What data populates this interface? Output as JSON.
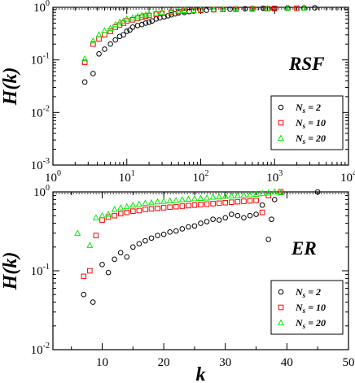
{
  "chart_data": [
    {
      "type": "scatter",
      "panel_label": "RSF",
      "xscale": "log",
      "yscale": "log",
      "xlim": [
        1,
        10000
      ],
      "ylim": [
        0.001,
        1
      ],
      "ylabel": "H(k)",
      "xlabel": "",
      "xtick_labels": [
        {
          "base": "10",
          "exp": "0"
        },
        {
          "base": "10",
          "exp": "1"
        },
        {
          "base": "10",
          "exp": "2"
        },
        {
          "base": "10",
          "exp": "3"
        },
        {
          "base": "10",
          "exp": "4"
        }
      ],
      "ytick_labels": [
        {
          "base": "10",
          "exp": "-3"
        },
        {
          "base": "10",
          "exp": "-2"
        },
        {
          "base": "10",
          "exp": "-1"
        },
        {
          "base": "10",
          "exp": "0"
        }
      ],
      "reference_line": 1,
      "legend_position": "bottom-right",
      "series": [
        {
          "name": "N_s = 2",
          "name_main": "N",
          "name_sub": "s",
          "name_rest": " = 2",
          "marker": "circle",
          "color": "#000000",
          "points": [
            [
              2.7,
              0.038
            ],
            [
              3.5,
              0.055
            ],
            [
              4.2,
              0.13
            ],
            [
              5,
              0.16
            ],
            [
              6,
              0.2
            ],
            [
              7,
              0.24
            ],
            [
              8,
              0.28
            ],
            [
              9,
              0.3
            ],
            [
              10,
              0.35
            ],
            [
              11,
              0.37
            ],
            [
              12,
              0.42
            ],
            [
              14,
              0.45
            ],
            [
              16,
              0.47
            ],
            [
              18,
              0.5
            ],
            [
              20,
              0.52
            ],
            [
              22,
              0.55
            ],
            [
              25,
              0.6
            ],
            [
              28,
              0.63
            ],
            [
              32,
              0.66
            ],
            [
              36,
              0.69
            ],
            [
              40,
              0.72
            ],
            [
              45,
              0.75
            ],
            [
              50,
              0.78
            ],
            [
              60,
              0.8
            ],
            [
              70,
              0.83
            ],
            [
              80,
              0.85
            ],
            [
              100,
              0.87
            ],
            [
              120,
              0.88
            ],
            [
              150,
              0.9
            ],
            [
              200,
              0.91
            ],
            [
              250,
              0.92
            ],
            [
              300,
              0.93
            ],
            [
              400,
              0.94
            ],
            [
              500,
              0.95
            ],
            [
              700,
              0.96
            ],
            [
              1000,
              0.96
            ],
            [
              1500,
              0.97
            ],
            [
              2500,
              0.97
            ],
            [
              3500,
              0.98
            ]
          ]
        },
        {
          "name": "N_s = 10",
          "name_main": "N",
          "name_sub": "s",
          "name_rest": " = 10",
          "marker": "square",
          "color": "#ff0000",
          "points": [
            [
              2.7,
              0.09
            ],
            [
              3.5,
              0.2
            ],
            [
              4.2,
              0.25
            ],
            [
              5,
              0.3
            ],
            [
              6,
              0.35
            ],
            [
              7,
              0.42
            ],
            [
              8,
              0.46
            ],
            [
              9,
              0.5
            ],
            [
              10,
              0.55
            ],
            [
              12,
              0.58
            ],
            [
              14,
              0.62
            ],
            [
              16,
              0.65
            ],
            [
              18,
              0.68
            ],
            [
              20,
              0.7
            ],
            [
              25,
              0.74
            ],
            [
              30,
              0.77
            ],
            [
              40,
              0.8
            ],
            [
              50,
              0.83
            ],
            [
              60,
              0.85
            ],
            [
              80,
              0.87
            ],
            [
              100,
              0.88
            ],
            [
              150,
              0.9
            ],
            [
              200,
              0.91
            ],
            [
              300,
              0.92
            ],
            [
              500,
              0.93
            ],
            [
              800,
              0.94
            ],
            [
              1000,
              0.95
            ],
            [
              2000,
              0.96
            ]
          ]
        },
        {
          "name": "N_s = 20",
          "name_main": "N",
          "name_sub": "s",
          "name_rest": " = 20",
          "marker": "triangle",
          "color": "#00ee00",
          "points": [
            [
              2.7,
              0.105
            ],
            [
              3.5,
              0.23
            ],
            [
              4.2,
              0.3
            ],
            [
              5,
              0.36
            ],
            [
              6,
              0.4
            ],
            [
              7,
              0.47
            ],
            [
              8,
              0.52
            ],
            [
              9,
              0.55
            ],
            [
              10,
              0.6
            ],
            [
              12,
              0.63
            ],
            [
              14,
              0.67
            ],
            [
              16,
              0.7
            ],
            [
              18,
              0.72
            ],
            [
              20,
              0.75
            ],
            [
              25,
              0.78
            ],
            [
              30,
              0.8
            ],
            [
              40,
              0.83
            ],
            [
              50,
              0.85
            ],
            [
              60,
              0.87
            ],
            [
              80,
              0.88
            ],
            [
              100,
              0.9
            ],
            [
              150,
              0.91
            ],
            [
              200,
              0.92
            ],
            [
              300,
              0.93
            ],
            [
              500,
              0.94
            ],
            [
              800,
              0.95
            ],
            [
              1500,
              0.96
            ],
            [
              2500,
              0.97
            ]
          ]
        }
      ]
    },
    {
      "type": "scatter",
      "panel_label": "ER",
      "xscale": "linear",
      "yscale": "log",
      "xlim": [
        2,
        50
      ],
      "ylim": [
        0.01,
        1
      ],
      "ylabel": "H(k)",
      "xlabel": "k",
      "xtick_labels": [
        "10",
        "20",
        "30",
        "40",
        "50"
      ],
      "xticks": [
        10,
        20,
        30,
        40,
        50
      ],
      "ytick_labels": [
        {
          "base": "10",
          "exp": "-2"
        },
        {
          "base": "10",
          "exp": "-1"
        },
        {
          "base": "10",
          "exp": "0"
        }
      ],
      "reference_line": 1,
      "legend_position": "bottom-right",
      "series": [
        {
          "name": "N_s = 2",
          "name_main": "N",
          "name_sub": "s",
          "name_rest": " = 2",
          "marker": "circle",
          "color": "#000000",
          "points": [
            [
              7,
              0.05
            ],
            [
              8.5,
              0.04
            ],
            [
              10,
              0.12
            ],
            [
              11,
              0.095
            ],
            [
              12,
              0.14
            ],
            [
              13,
              0.17
            ],
            [
              14,
              0.15
            ],
            [
              15,
              0.2
            ],
            [
              16,
              0.22
            ],
            [
              17,
              0.24
            ],
            [
              18,
              0.26
            ],
            [
              19,
              0.28
            ],
            [
              20,
              0.29
            ],
            [
              21,
              0.31
            ],
            [
              22,
              0.32
            ],
            [
              23,
              0.34
            ],
            [
              24,
              0.36
            ],
            [
              25,
              0.37
            ],
            [
              26,
              0.4
            ],
            [
              27,
              0.42
            ],
            [
              28,
              0.45
            ],
            [
              29,
              0.44
            ],
            [
              30,
              0.47
            ],
            [
              31,
              0.52
            ],
            [
              32,
              0.5
            ],
            [
              33,
              0.47
            ],
            [
              34,
              0.5
            ],
            [
              35,
              0.52
            ],
            [
              36,
              0.68
            ],
            [
              37,
              0.25
            ],
            [
              37.5,
              0.45
            ],
            [
              38,
              0.8
            ],
            [
              45,
              1.0
            ]
          ]
        },
        {
          "name": "N_s = 10",
          "name_main": "N",
          "name_sub": "s",
          "name_rest": " = 10",
          "marker": "square",
          "color": "#ff0000",
          "points": [
            [
              7,
              0.085
            ],
            [
              8,
              0.1
            ],
            [
              9,
              0.28
            ],
            [
              10,
              0.44
            ],
            [
              11,
              0.48
            ],
            [
              12,
              0.5
            ],
            [
              13,
              0.53
            ],
            [
              14,
              0.55
            ],
            [
              15,
              0.57
            ],
            [
              16,
              0.58
            ],
            [
              17,
              0.6
            ],
            [
              18,
              0.61
            ],
            [
              19,
              0.62
            ],
            [
              20,
              0.63
            ],
            [
              21,
              0.64
            ],
            [
              22,
              0.65
            ],
            [
              23,
              0.66
            ],
            [
              24,
              0.67
            ],
            [
              25,
              0.68
            ],
            [
              26,
              0.69
            ],
            [
              27,
              0.7
            ],
            [
              28,
              0.71
            ],
            [
              29,
              0.72
            ],
            [
              30,
              0.73
            ],
            [
              31,
              0.74
            ],
            [
              32,
              0.75
            ],
            [
              33,
              0.76
            ],
            [
              34,
              0.77
            ],
            [
              35,
              0.78
            ],
            [
              36,
              0.55
            ],
            [
              37,
              0.9
            ],
            [
              39,
              1.0
            ]
          ]
        },
        {
          "name": "N_s = 20",
          "name_main": "N",
          "name_sub": "s",
          "name_rest": " = 20",
          "marker": "triangle",
          "color": "#00ee00",
          "points": [
            [
              6,
              0.3
            ],
            [
              8,
              0.21
            ],
            [
              9,
              0.47
            ],
            [
              10,
              0.5
            ],
            [
              11,
              0.52
            ],
            [
              12,
              0.6
            ],
            [
              13,
              0.63
            ],
            [
              14,
              0.65
            ],
            [
              15,
              0.68
            ],
            [
              16,
              0.7
            ],
            [
              17,
              0.72
            ],
            [
              18,
              0.73
            ],
            [
              19,
              0.75
            ],
            [
              20,
              0.76
            ],
            [
              21,
              0.77
            ],
            [
              22,
              0.78
            ],
            [
              23,
              0.8
            ],
            [
              24,
              0.81
            ],
            [
              25,
              0.82
            ],
            [
              26,
              0.83
            ],
            [
              27,
              0.84
            ],
            [
              28,
              0.86
            ],
            [
              29,
              0.87
            ],
            [
              30,
              0.88
            ],
            [
              31,
              0.89
            ],
            [
              32,
              0.9
            ],
            [
              33,
              0.91
            ],
            [
              34,
              0.92
            ],
            [
              35,
              0.93
            ],
            [
              36,
              0.96
            ],
            [
              37,
              0.97
            ],
            [
              38,
              1.0
            ],
            [
              39,
              0.98
            ]
          ]
        }
      ]
    }
  ]
}
